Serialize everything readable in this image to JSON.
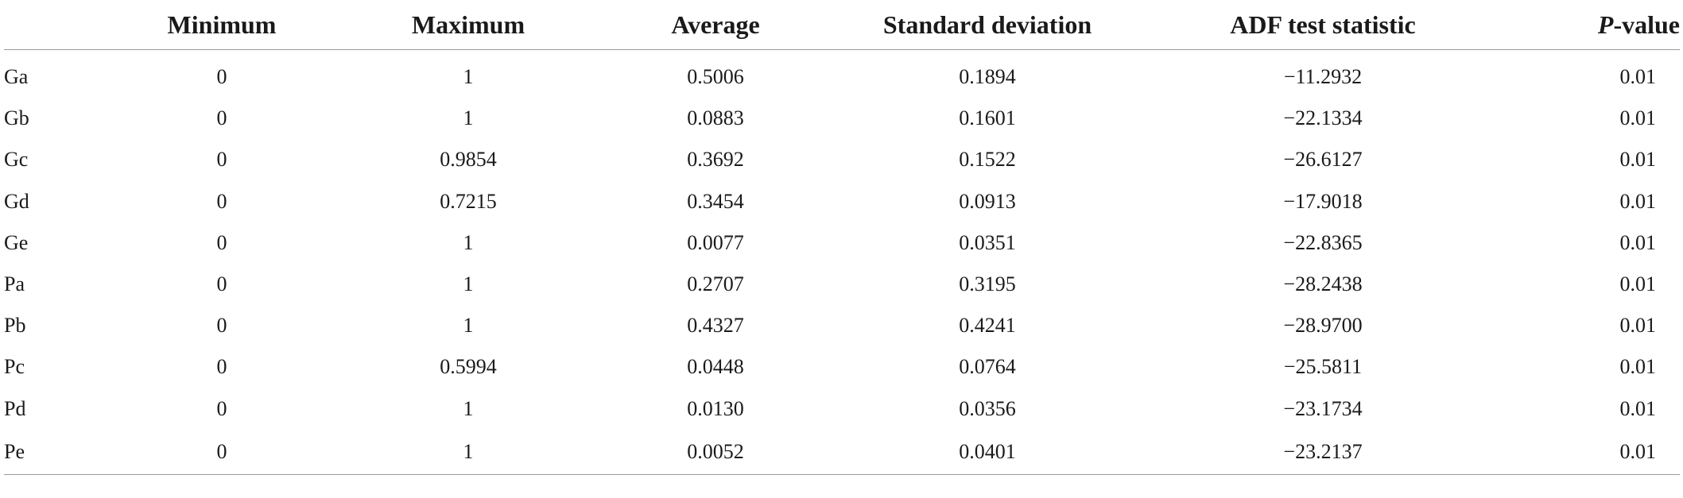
{
  "table": {
    "headers": {
      "label": "",
      "col1": "Minimum",
      "col2": "Maximum",
      "col3": "Average",
      "col4": "Standard deviation",
      "col5": "ADF test statistic",
      "col6_italic": "P",
      "col6_rest": "-value"
    },
    "rows": [
      {
        "label": "Ga",
        "min": "0",
        "max": "1",
        "avg": "0.5006",
        "sd": "0.1894",
        "adf": "−11.2932",
        "p": "0.01"
      },
      {
        "label": "Gb",
        "min": "0",
        "max": "1",
        "avg": "0.0883",
        "sd": "0.1601",
        "adf": "−22.1334",
        "p": "0.01"
      },
      {
        "label": "Gc",
        "min": "0",
        "max": "0.9854",
        "avg": "0.3692",
        "sd": "0.1522",
        "adf": "−26.6127",
        "p": "0.01"
      },
      {
        "label": "Gd",
        "min": "0",
        "max": "0.7215",
        "avg": "0.3454",
        "sd": "0.0913",
        "adf": "−17.9018",
        "p": "0.01"
      },
      {
        "label": "Ge",
        "min": "0",
        "max": "1",
        "avg": "0.0077",
        "sd": "0.0351",
        "adf": "−22.8365",
        "p": "0.01"
      },
      {
        "label": "Pa",
        "min": "0",
        "max": "1",
        "avg": "0.2707",
        "sd": "0.3195",
        "adf": "−28.2438",
        "p": "0.01"
      },
      {
        "label": "Pb",
        "min": "0",
        "max": "1",
        "avg": "0.4327",
        "sd": "0.4241",
        "adf": "−28.9700",
        "p": "0.01"
      },
      {
        "label": "Pc",
        "min": "0",
        "max": "0.5994",
        "avg": "0.0448",
        "sd": "0.0764",
        "adf": "−25.5811",
        "p": "0.01"
      },
      {
        "label": "Pd",
        "min": "0",
        "max": "1",
        "avg": "0.0130",
        "sd": "0.0356",
        "adf": "−23.1734",
        "p": "0.01"
      },
      {
        "label": "Pe",
        "min": "0",
        "max": "1",
        "avg": "0.0052",
        "sd": "0.0401",
        "adf": "−23.2137",
        "p": "0.01"
      }
    ]
  }
}
